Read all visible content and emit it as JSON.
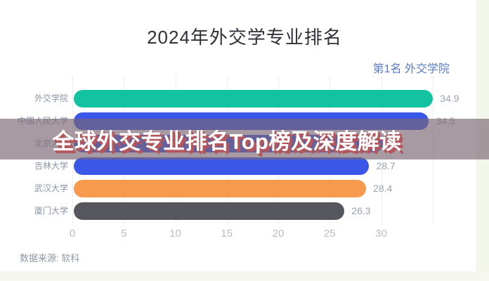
{
  "title": "2024年外交学专业排名",
  "rank_note": {
    "text": "第1名 外交学院",
    "color": "#5b7bc7"
  },
  "overlay_banner": {
    "text": "全球外交专业排名Top榜及深度解读",
    "text_color": "#ffffff",
    "shadow_color": "#b4575c",
    "background": "rgba(121,102,116,0.66)"
  },
  "source": {
    "label": "数据来源: 软科"
  },
  "colors": {
    "title": "#2f3038",
    "category_label": "#8b95a8",
    "value_label": "#9aa3b2",
    "axis_tick": "#b4bcc8",
    "gridline": "#ededf2",
    "edge_strip": "#f3f6ea"
  },
  "chart_data": {
    "type": "bar",
    "orientation": "horizontal",
    "title": "2024年外交学专业排名",
    "categories": [
      "外交学院",
      "中国人民大学",
      "北京大学",
      "吉林大学",
      "武汉大学",
      "厦门大学"
    ],
    "values": [
      34.9,
      34.5,
      null,
      28.7,
      28.4,
      26.3
    ],
    "value_labels": [
      "34.9",
      "34.5",
      "",
      "28.7",
      "28.4",
      "26.3"
    ],
    "bar_colors": [
      "#12c2a0",
      "#3a57e8",
      "#3a57e8",
      "#3a57e8",
      "#f89a4d",
      "#56565e"
    ],
    "x_ticks": [
      0,
      5,
      10,
      15,
      20,
      25,
      30
    ],
    "xlim": [
      0,
      37
    ],
    "grid": true,
    "legend": false,
    "note": "北京大学 bar and its value are hidden behind the overlay banner"
  }
}
